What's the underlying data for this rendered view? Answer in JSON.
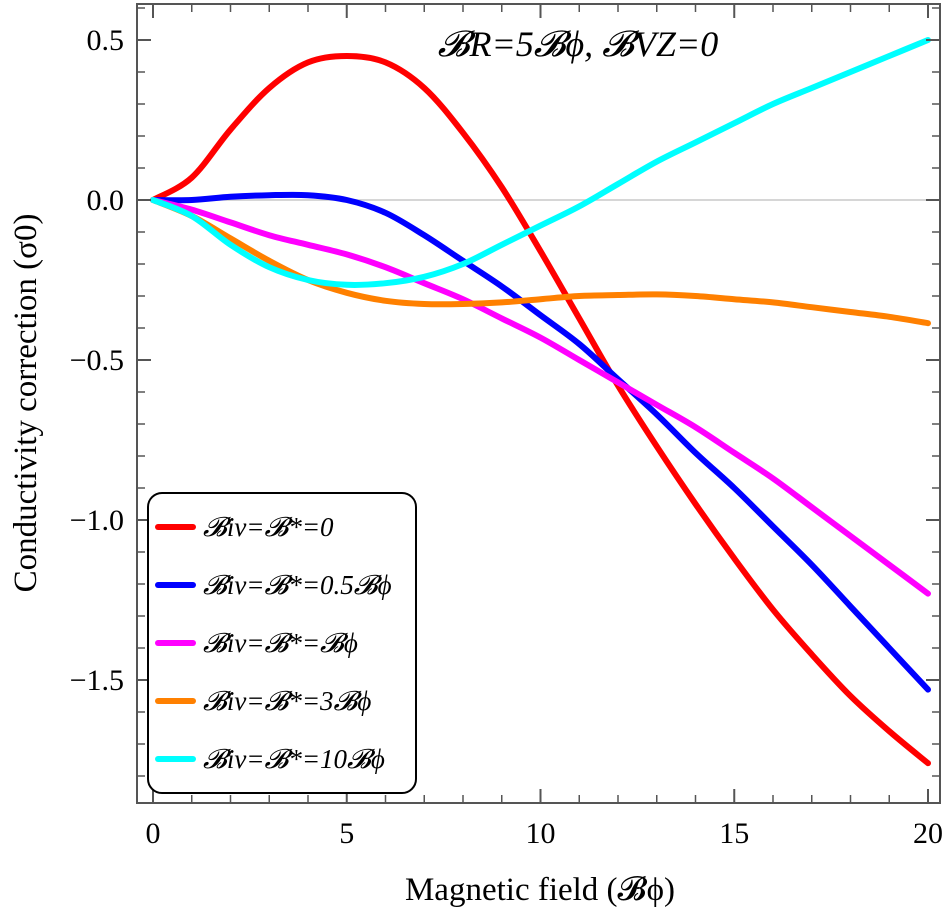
{
  "chart_data": {
    "type": "line",
    "annotation": "𝓑R=5𝓑ϕ, 𝓑VZ=0",
    "xlabel": "Magnetic field (𝓑ϕ)",
    "ylabel": "Conductivity correction (σ0)",
    "xlim": [
      0,
      20
    ],
    "ylim": [
      -1.85,
      0.6
    ],
    "x_ticks": [
      0,
      5,
      10,
      15,
      20
    ],
    "x_tick_labels": [
      "0",
      "5",
      "10",
      "15",
      "20"
    ],
    "y_ticks": [
      0.5,
      0.0,
      -0.5,
      -1.0,
      -1.5
    ],
    "y_tick_labels": [
      "0.5",
      "0.0",
      "−0.5",
      "−1.0",
      "−1.5"
    ],
    "grid": false,
    "zero_line": true,
    "legend_position": "bottom-left",
    "x": [
      0,
      1,
      2,
      3,
      4,
      5,
      6,
      7,
      8,
      9,
      10,
      11,
      12,
      13,
      14,
      15,
      16,
      17,
      18,
      19,
      20
    ],
    "series": [
      {
        "name": "𝓑iv=𝓑*=0",
        "color": "#ff0000",
        "values": [
          0.0,
          0.07,
          0.22,
          0.35,
          0.43,
          0.45,
          0.43,
          0.35,
          0.21,
          0.04,
          -0.16,
          -0.37,
          -0.58,
          -0.77,
          -0.95,
          -1.12,
          -1.28,
          -1.42,
          -1.55,
          -1.66,
          -1.76
        ]
      },
      {
        "name": "𝓑iv=𝓑*=0.5𝓑ϕ",
        "color": "#0000ff",
        "values": [
          0.0,
          0.0,
          0.01,
          0.015,
          0.015,
          0.0,
          -0.04,
          -0.11,
          -0.19,
          -0.27,
          -0.36,
          -0.45,
          -0.56,
          -0.67,
          -0.79,
          -0.9,
          -1.02,
          -1.14,
          -1.27,
          -1.4,
          -1.53
        ]
      },
      {
        "name": "𝓑iv=𝓑*=𝓑ϕ",
        "color": "#ff00ff",
        "values": [
          0.0,
          -0.03,
          -0.07,
          -0.11,
          -0.14,
          -0.17,
          -0.21,
          -0.26,
          -0.31,
          -0.37,
          -0.43,
          -0.5,
          -0.57,
          -0.64,
          -0.71,
          -0.79,
          -0.87,
          -0.96,
          -1.05,
          -1.14,
          -1.23
        ]
      },
      {
        "name": "𝓑iv=𝓑*=3𝓑ϕ",
        "color": "#ff8000",
        "values": [
          0.0,
          -0.05,
          -0.12,
          -0.19,
          -0.25,
          -0.29,
          -0.315,
          -0.325,
          -0.325,
          -0.32,
          -0.31,
          -0.3,
          -0.297,
          -0.295,
          -0.3,
          -0.31,
          -0.32,
          -0.335,
          -0.35,
          -0.365,
          -0.385
        ]
      },
      {
        "name": "𝓑iv=𝓑*=10𝓑ϕ",
        "color": "#00ffff",
        "values": [
          0.0,
          -0.05,
          -0.14,
          -0.21,
          -0.25,
          -0.265,
          -0.26,
          -0.24,
          -0.2,
          -0.14,
          -0.08,
          -0.02,
          0.05,
          0.12,
          0.18,
          0.24,
          0.3,
          0.35,
          0.4,
          0.45,
          0.5
        ]
      }
    ]
  }
}
